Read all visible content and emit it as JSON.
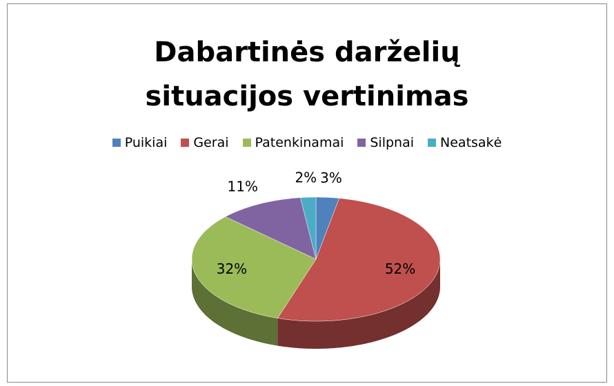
{
  "chart_data": {
    "type": "pie",
    "title": "Dabartinės darželių situacijos vertinimas",
    "categories": [
      "Puikiai",
      "Gerai",
      "Patenkinamai",
      "Silpnai",
      "Neatsakė"
    ],
    "values": [
      3,
      52,
      32,
      11,
      2
    ],
    "value_labels": [
      "3%",
      "52%",
      "32%",
      "11%",
      "2%"
    ],
    "colors": [
      "#4f81bd",
      "#c0504d",
      "#9bbb59",
      "#8064a2",
      "#4bacc6"
    ],
    "legend": "top"
  }
}
